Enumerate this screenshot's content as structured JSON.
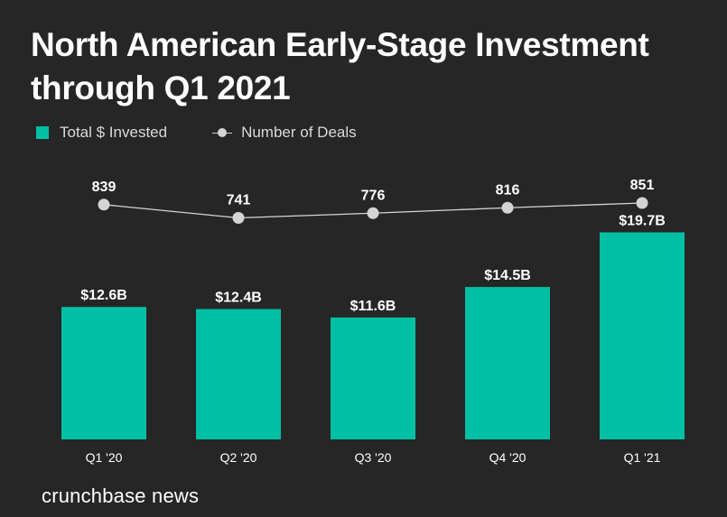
{
  "chart_data": {
    "type": "bar",
    "title": "North American Early-Stage Investment through Q1 2021",
    "categories": [
      "Q1 '20",
      "Q2 '20",
      "Q3 '20",
      "Q4 '20",
      "Q1 '21"
    ],
    "series": [
      {
        "name": "Total $ Invested",
        "kind": "bar",
        "values": [
          12.6,
          12.4,
          11.6,
          14.5,
          19.7
        ],
        "labels": [
          "$12.6B",
          "$12.4B",
          "$11.6B",
          "$14.5B",
          "$19.7B"
        ],
        "color": "#00bfa5"
      },
      {
        "name": "Number of Deals",
        "kind": "line",
        "values": [
          839,
          741,
          776,
          816,
          851
        ],
        "labels": [
          "839",
          "741",
          "776",
          "816",
          "851"
        ],
        "color": "#d4d4d4"
      }
    ],
    "xlabel": "",
    "ylabel": "",
    "grid": false,
    "legend_position": "top-left"
  },
  "legend": {
    "bars_label": "Total $ Invested",
    "line_label": "Number of Deals"
  },
  "brand": "crunchbase news",
  "colors": {
    "background": "#262626",
    "bar": "#00bfa5",
    "line": "#d4d4d4"
  }
}
